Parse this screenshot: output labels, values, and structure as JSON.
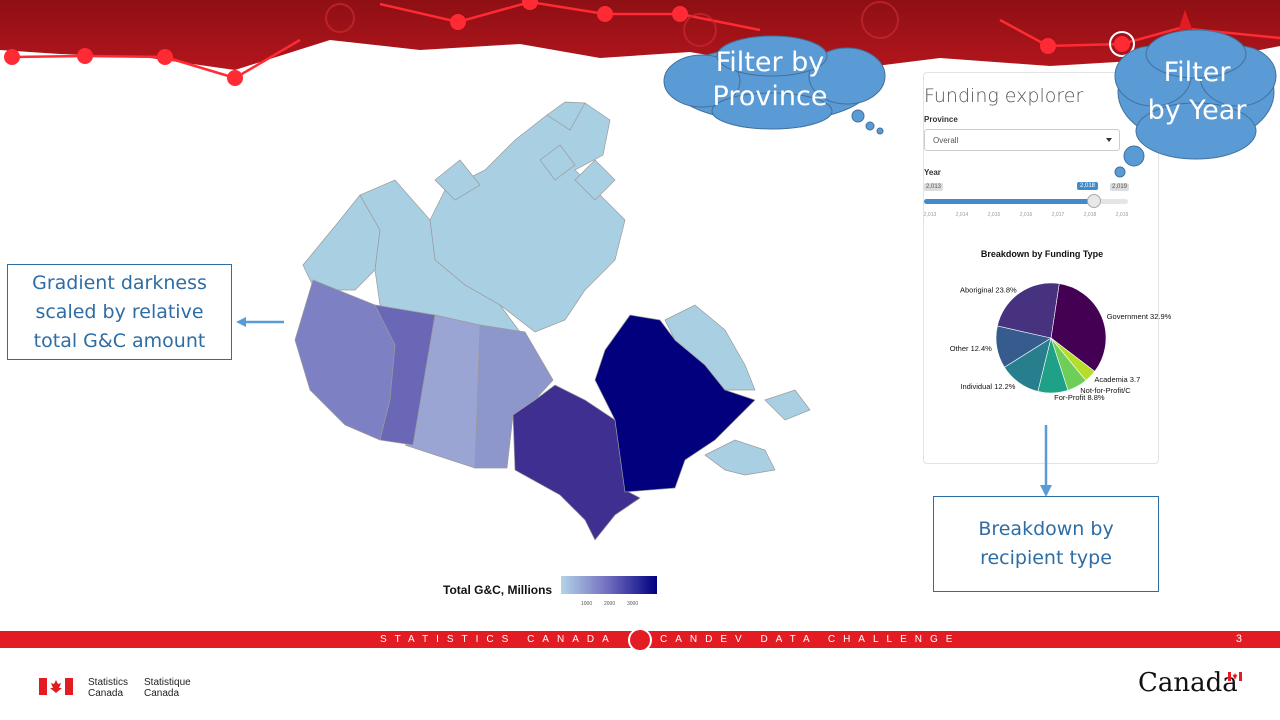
{
  "annotations": {
    "gradient_note": [
      "Gradient darkness",
      "scaled by relative",
      "total G&C amount"
    ],
    "breakdown_note": [
      "Breakdown by",
      "recipient type"
    ],
    "cloud_province": [
      "Filter by",
      "Province"
    ],
    "cloud_year": [
      "Filter",
      "by Year"
    ]
  },
  "panel": {
    "title": "Funding explorer",
    "province_label": "Province",
    "province_value": "Overall",
    "year_label": "Year",
    "year_min": "2,013",
    "year_max": "2,019",
    "year_current": "2,018",
    "year_current_fraction": 0.833,
    "year_ticks": [
      "2,013",
      "2,014",
      "2,015",
      "2,016",
      "2,017",
      "2,018",
      "2,019"
    ]
  },
  "chart_data": {
    "type": "pie",
    "title": "Breakdown by Funding Type",
    "slices": [
      {
        "label": "Government 32.9%",
        "value": 32.9,
        "color": "#440154"
      },
      {
        "label": "Academia 3.7",
        "value": 3.7,
        "color": "#b5de2b"
      },
      {
        "label": "Not-for-Profit/C",
        "value": 5.9,
        "color": "#6ece58"
      },
      {
        "label": "For-Profit 8.8%",
        "value": 8.8,
        "color": "#1fa187"
      },
      {
        "label": "Individual 12.2%",
        "value": 12.2,
        "color": "#277f8e"
      },
      {
        "label": "Other 12.4%",
        "value": 12.4,
        "color": "#365c8d"
      },
      {
        "label": "Aboriginal 23.8%",
        "value": 23.8,
        "color": "#46327e"
      }
    ]
  },
  "map": {
    "legend_title": "Total G&C, Millions",
    "legend_ticks": [
      "1000",
      "2000",
      "3000"
    ],
    "legend_colors": [
      "#b3d4e6",
      "#000080"
    ]
  },
  "footer": {
    "left_text": "STATISTICS CANADA",
    "right_text": "CANDEV DATA CHALLENGE",
    "page": "3",
    "org_en": [
      "Statistics",
      "Canada"
    ],
    "org_fr": [
      "Statistique",
      "Canada"
    ],
    "wordmark": "Canada"
  }
}
